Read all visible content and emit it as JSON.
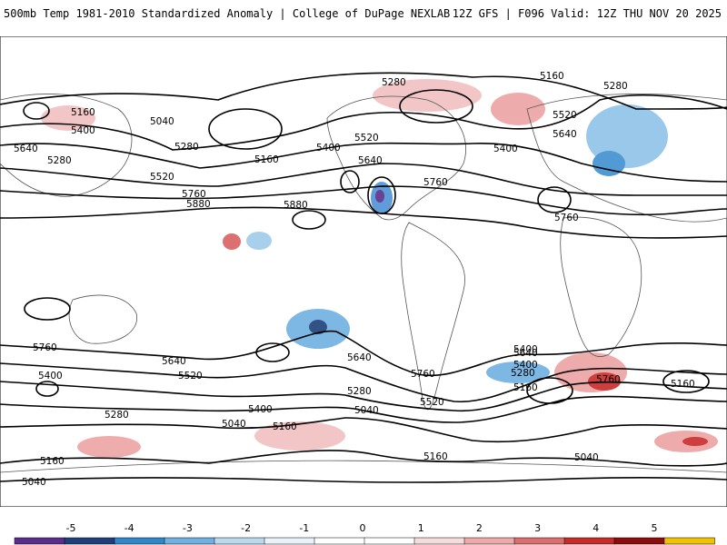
{
  "header": {
    "left": "500mb Temp 1981-2010 Standardized Anomaly | College of DuPage NEXLAB",
    "right": "12Z GFS | F096 Valid: 12Z THU NOV 20 2025"
  },
  "map": {
    "contour_labels": [
      "5160",
      "5040",
      "5280",
      "5400",
      "5640",
      "5280",
      "5160",
      "5520",
      "5760",
      "5880",
      "5880",
      "5400",
      "5520",
      "5640",
      "5280",
      "5760",
      "5160",
      "5280",
      "5520",
      "5640",
      "5400",
      "5760",
      "5760",
      "5640",
      "5400",
      "5520",
      "5640",
      "5760",
      "5400",
      "5280",
      "5160",
      "5040",
      "5280",
      "5400",
      "5520",
      "5640",
      "5760",
      "5280",
      "5400",
      "5160",
      "5160",
      "5040",
      "5160",
      "5040",
      "5160",
      "5040"
    ]
  },
  "colorbar": {
    "ticks": [
      "-5",
      "-4",
      "-3",
      "-2",
      "-1",
      "0",
      "1",
      "2",
      "3",
      "4",
      "5"
    ],
    "colors": [
      "#5a2d8c",
      "#1f3f7a",
      "#2f87c9",
      "#6fb0e0",
      "#bcd8ef",
      "#e9f2fa",
      "#ffffff",
      "#ffffff",
      "#f7dcdc",
      "#eea9a9",
      "#dd6e6e",
      "#c82a2a",
      "#8e0c0c",
      "#f2c200"
    ]
  }
}
